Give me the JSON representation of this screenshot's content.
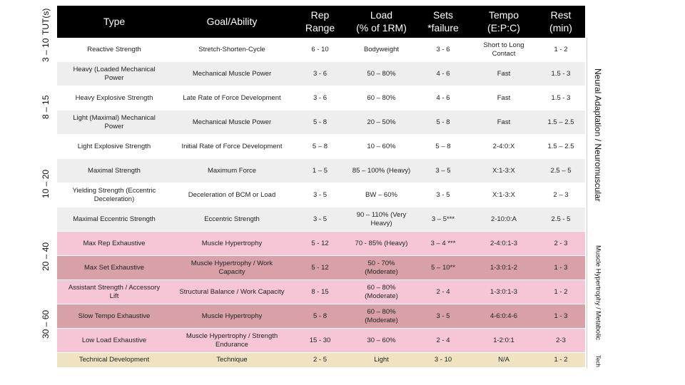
{
  "table": {
    "header": [
      "Type",
      "Goal/Ability",
      "Rep\nRange",
      "Load\n(% of 1RM)",
      "Sets\n*failure",
      "Tempo\n(E:P:C)",
      "Rest\n(min)"
    ],
    "rows": [
      [
        "Reactive Strength",
        "Stretch-Shorten-Cycle",
        "6 - 10",
        "Bodyweight",
        "3 - 6",
        "Short to Long\nContact",
        "1 - 2"
      ],
      [
        "Heavy (Loaded Mechanical\nPower",
        "Mechanical Muscle Power",
        "3 - 6",
        "50 – 80%",
        "4 - 6",
        "Fast",
        "1.5 - 3"
      ],
      [
        "Heavy Explosive Strength",
        "Late Rate of Force Development",
        "3 - 6",
        "60 – 80%",
        "4 - 6",
        "Fast",
        "1.5 - 3"
      ],
      [
        "Light (Maximal) Mechanical\nPower",
        "Mechanical Muscle Power",
        "5 - 8",
        "20 – 50%",
        "5 - 8",
        "Fast",
        "1.5 – 2.5"
      ],
      [
        "Light Explosive Strength",
        "Initial Rate of Force Development",
        "5 – 8",
        "10 – 60%",
        "5 – 8",
        "2-4:0:X",
        "1.5 – 2.5"
      ],
      [
        "Maximal Strength",
        "Maximum Force",
        "1 – 5",
        "85 – 100% (Heavy)",
        "3 – 5",
        "X:1-3:X",
        "2.5 – 5"
      ],
      [
        "Yielding Strength (Eccentric\nDeceleration)",
        "Deceleration of BCM or Load",
        "3 - 5",
        "BW – 60%",
        "3 - 5",
        "X:1-3:X",
        "2 – 3"
      ],
      [
        "Maximal Eccentric Strength",
        "Eccentric Strength",
        "3 - 5",
        "90 – 110% (Very\nHeavy)",
        "3 – 5***",
        "2-10:0:A",
        "2.5 - 5"
      ],
      [
        "Max Rep Exhaustive",
        "Muscle Hypertrophy",
        "5 - 12",
        "70 - 85% (Heavy)",
        "3 – 4 ***",
        "2-4:0:1-3",
        "2 - 3"
      ],
      [
        "Max Set Exhaustive",
        "Muscle Hypertrophy / Work\nCapacity",
        "5 - 12",
        "50 - 70%\n(Moderate)",
        "5 – 10**",
        "1-3:0:1-2",
        "1 - 3"
      ],
      [
        "Assistant Strength / Accessory\nLift",
        "Structural Balance / Work Capacity",
        "8 - 15",
        "60 – 80%\n(Moderate)",
        "2 - 4",
        "1-3:0:1-3",
        "1 - 2"
      ],
      [
        "Slow Tempo Exhaustive",
        "Muscle Hypertrophy",
        "5 - 8",
        "60 – 80%\n(Moderate)",
        "3 - 5",
        "4-6:0:4-6",
        "1 - 3"
      ],
      [
        "Low Load Exhaustive",
        "Muscle Hypertrophy / Strength\nEndurance",
        "15 - 30",
        "30 – 60%",
        "2 - 4",
        "1-2:0:1",
        "2-3"
      ],
      [
        "Technical Development",
        "Technique",
        "2 - 5",
        "Light",
        "3 - 10",
        "N/A",
        "1 - 2"
      ]
    ],
    "left_header": "TUT(s)",
    "left_labels": [
      "3 – 10",
      "8 – 15",
      "10 – 20",
      "20 – 40",
      "30 – 60"
    ],
    "right_labels": [
      "Neural Adaptation / Neuromuscular",
      "Muscle Hypertrophy / Metabolic",
      "Tech"
    ]
  }
}
